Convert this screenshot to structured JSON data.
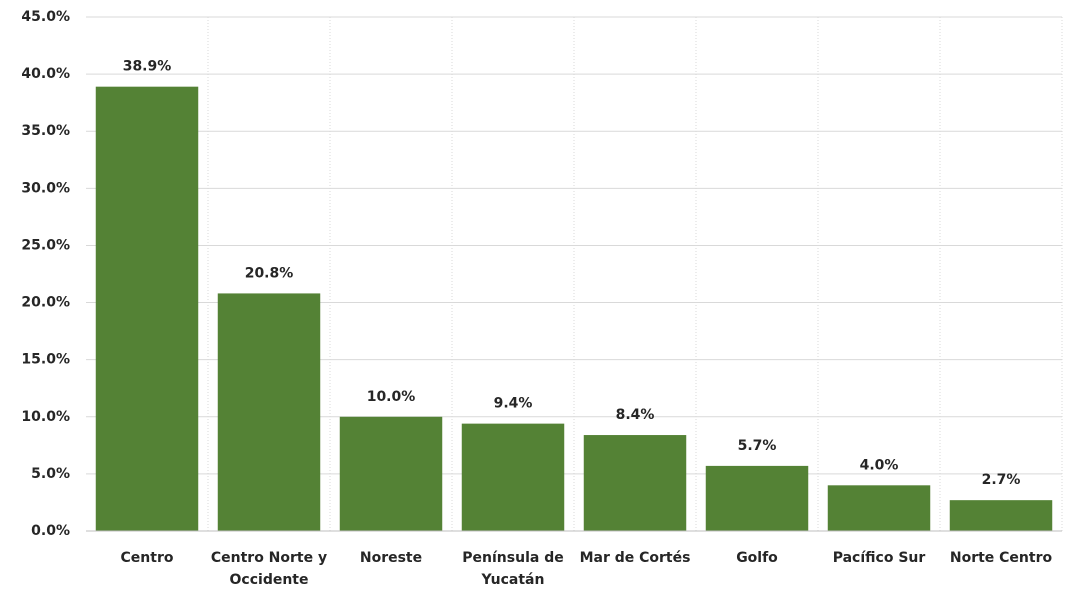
{
  "chart_data": {
    "type": "bar",
    "categories": [
      "Centro",
      "Centro Norte y Occidente",
      "Noreste",
      "Península de Yucatán",
      "Mar de Cortés",
      "Golfo",
      "Pacífico Sur",
      "Norte Centro"
    ],
    "values": [
      38.9,
      20.8,
      10.0,
      9.4,
      8.4,
      5.7,
      4.0,
      2.7
    ],
    "value_labels": [
      "38.9%",
      "20.8%",
      "10.0%",
      "9.4%",
      "8.4%",
      "5.7%",
      "4.0%",
      "2.7%"
    ],
    "color": "#548235",
    "ylim": [
      0,
      45
    ],
    "yticks": [
      {
        "value": 0,
        "label": "0.0%"
      },
      {
        "value": 5,
        "label": "5.0%"
      },
      {
        "value": 10,
        "label": "10.0%"
      },
      {
        "value": 15,
        "label": "15.0%"
      },
      {
        "value": 20,
        "label": "20.0%"
      },
      {
        "value": 25,
        "label": "25.0%"
      },
      {
        "value": 30,
        "label": "30.0%"
      },
      {
        "value": 35,
        "label": "35.0%"
      },
      {
        "value": 40,
        "label": "40.0%"
      },
      {
        "value": 45,
        "label": "45.0%"
      }
    ],
    "grid": true
  }
}
